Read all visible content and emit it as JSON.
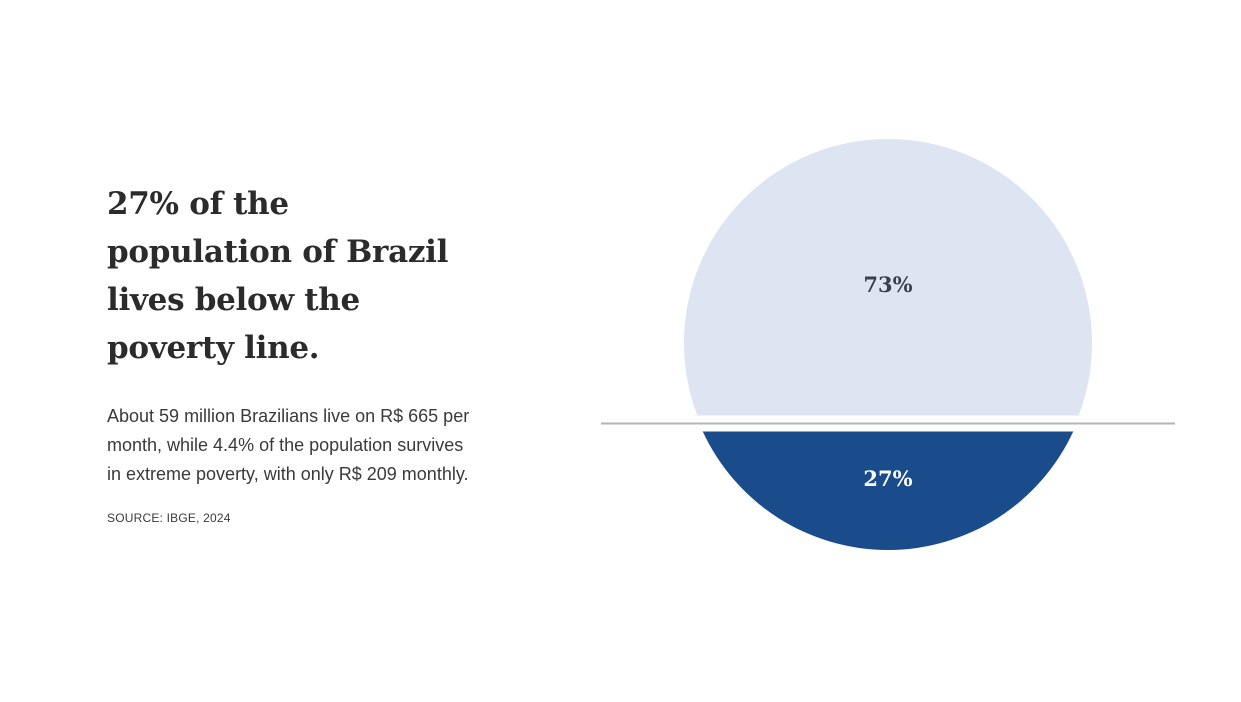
{
  "text": {
    "headline": "27% of the\npopulation of Brazil\nlives below the\npoverty line.",
    "body": "About 59 million Brazilians live on R$ 665 per\nmonth, while 4.4% of the population survives\nin extreme poverty, with only R$ 209 monthly.",
    "source": "SOURCE: IBGE, 2024"
  },
  "chart_data": {
    "type": "pie",
    "categories": [
      "",
      ""
    ],
    "values": [
      73,
      27
    ],
    "labels": [
      "73%",
      "27%"
    ],
    "colors": [
      "#dde4f2",
      "#1a4c8c"
    ],
    "label_colors": [
      "#3a3f4a",
      "#ffffff"
    ],
    "divider_color": "#b4b4bc",
    "title": "",
    "legend": "none"
  }
}
